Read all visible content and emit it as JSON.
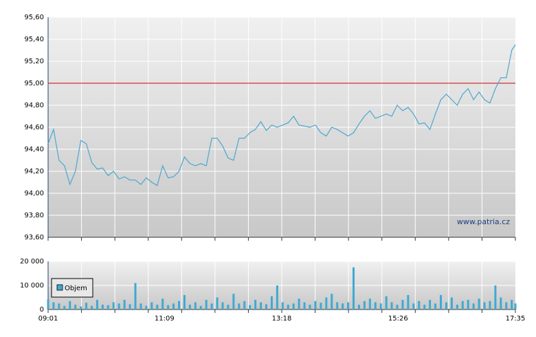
{
  "chart_data": [
    {
      "type": "line",
      "x": [
        "09:01",
        "09:07",
        "09:13",
        "09:19",
        "09:25",
        "09:31",
        "09:37",
        "09:43",
        "09:49",
        "09:55",
        "10:01",
        "10:07",
        "10:13",
        "10:19",
        "10:25",
        "10:31",
        "10:37",
        "10:43",
        "10:49",
        "10:55",
        "11:01",
        "11:07",
        "11:13",
        "11:19",
        "11:25",
        "11:31",
        "11:37",
        "11:43",
        "11:49",
        "11:55",
        "12:01",
        "12:07",
        "12:13",
        "12:19",
        "12:25",
        "12:31",
        "12:37",
        "12:43",
        "12:49",
        "12:55",
        "13:01",
        "13:07",
        "13:13",
        "13:19",
        "13:25",
        "13:31",
        "13:37",
        "13:43",
        "13:49",
        "13:55",
        "14:01",
        "14:07",
        "14:13",
        "14:19",
        "14:25",
        "14:31",
        "14:37",
        "14:43",
        "14:49",
        "14:55",
        "15:01",
        "15:07",
        "15:13",
        "15:19",
        "15:25",
        "15:31",
        "15:37",
        "15:43",
        "15:49",
        "15:55",
        "16:01",
        "16:07",
        "16:13",
        "16:19",
        "16:25",
        "16:31",
        "16:37",
        "16:43",
        "16:49",
        "16:55",
        "17:01",
        "17:07",
        "17:13",
        "17:19",
        "17:25",
        "17:31",
        "17:35"
      ],
      "values": [
        94.45,
        94.58,
        94.3,
        94.25,
        94.08,
        94.2,
        94.48,
        94.45,
        94.28,
        94.22,
        94.23,
        94.16,
        94.2,
        94.13,
        94.15,
        94.12,
        94.12,
        94.08,
        94.14,
        94.1,
        94.07,
        94.25,
        94.14,
        94.15,
        94.2,
        94.33,
        94.27,
        94.25,
        94.27,
        94.25,
        94.5,
        94.5,
        94.43,
        94.32,
        94.3,
        94.5,
        94.5,
        94.55,
        94.58,
        94.65,
        94.57,
        94.62,
        94.6,
        94.62,
        94.64,
        94.7,
        94.62,
        94.61,
        94.6,
        94.62,
        94.55,
        94.52,
        94.6,
        94.58,
        94.55,
        94.52,
        94.55,
        94.63,
        94.7,
        94.75,
        94.68,
        94.7,
        94.72,
        94.7,
        94.8,
        94.75,
        94.78,
        94.72,
        94.63,
        94.64,
        94.58,
        94.72,
        94.85,
        94.9,
        94.85,
        94.8,
        94.9,
        94.95,
        94.85,
        94.92,
        94.85,
        94.82,
        94.95,
        95.05,
        95.05,
        95.3,
        95.35
      ],
      "color": "#4aa6cf",
      "xlim": [
        "09:01",
        "17:35"
      ],
      "ylim": [
        93.6,
        95.6
      ],
      "yticks": [
        {
          "value": 93.6,
          "label": "93,60"
        },
        {
          "value": 93.8,
          "label": "93,80"
        },
        {
          "value": 94.0,
          "label": "94,00"
        },
        {
          "value": 94.2,
          "label": "94,20"
        },
        {
          "value": 94.4,
          "label": "94,40"
        },
        {
          "value": 94.6,
          "label": "94,60"
        },
        {
          "value": 94.8,
          "label": "94,80"
        },
        {
          "value": 95.0,
          "label": "95,00"
        },
        {
          "value": 95.2,
          "label": "95,20"
        },
        {
          "value": 95.4,
          "label": "95,40"
        },
        {
          "value": 95.6,
          "label": "95,60"
        }
      ],
      "reference_line": {
        "value": 95.0,
        "color": "#cc0000"
      },
      "annotation": "www.patria.cz",
      "grid": true
    },
    {
      "type": "bar",
      "x": [
        "09:01",
        "09:07",
        "09:13",
        "09:19",
        "09:25",
        "09:31",
        "09:37",
        "09:43",
        "09:49",
        "09:55",
        "10:01",
        "10:07",
        "10:13",
        "10:19",
        "10:25",
        "10:31",
        "10:37",
        "10:43",
        "10:49",
        "10:55",
        "11:01",
        "11:07",
        "11:13",
        "11:19",
        "11:25",
        "11:31",
        "11:37",
        "11:43",
        "11:49",
        "11:55",
        "12:01",
        "12:07",
        "12:13",
        "12:19",
        "12:25",
        "12:31",
        "12:37",
        "12:43",
        "12:49",
        "12:55",
        "13:01",
        "13:07",
        "13:13",
        "13:19",
        "13:25",
        "13:31",
        "13:37",
        "13:43",
        "13:49",
        "13:55",
        "14:01",
        "14:07",
        "14:13",
        "14:19",
        "14:25",
        "14:31",
        "14:37",
        "14:43",
        "14:49",
        "14:55",
        "15:01",
        "15:07",
        "15:13",
        "15:19",
        "15:25",
        "15:31",
        "15:37",
        "15:43",
        "15:49",
        "15:55",
        "16:01",
        "16:07",
        "16:13",
        "16:19",
        "16:25",
        "16:31",
        "16:37",
        "16:43",
        "16:49",
        "16:55",
        "17:01",
        "17:07",
        "17:13",
        "17:19",
        "17:25",
        "17:31",
        "17:35"
      ],
      "series": [
        {
          "name": "Objem",
          "color": "#3fa9d1",
          "values": [
            4200,
            3000,
            2500,
            1500,
            3500,
            2000,
            1200,
            2800,
            1500,
            4000,
            2000,
            1800,
            3000,
            2500,
            4000,
            2200,
            11000,
            2500,
            1500,
            3000,
            2000,
            4500,
            1800,
            2500,
            3500,
            6000,
            2000,
            3000,
            1500,
            4000,
            2500,
            5000,
            3000,
            2000,
            6500,
            2500,
            3500,
            1800,
            4000,
            3000,
            2200,
            5500,
            10000,
            3000,
            2000,
            2500,
            4500,
            3000,
            2000,
            3500,
            2800,
            5000,
            6500,
            3000,
            2500,
            3000,
            17500,
            2000,
            3500,
            4500,
            3000,
            2500,
            5500,
            3000,
            2000,
            4000,
            6000,
            2500,
            3500,
            2000,
            4000,
            2500,
            6000,
            3000,
            5000,
            2000,
            3500,
            4000,
            2500,
            4500,
            3000,
            3500,
            10000,
            5000,
            3000,
            4000,
            2500
          ]
        }
      ],
      "xlim": [
        "09:01",
        "17:35"
      ],
      "xticks": [
        "09:01",
        "11:09",
        "13:18",
        "15:26",
        "17:35"
      ],
      "ylim": [
        0,
        20000
      ],
      "yticks": [
        0,
        {
          "value": 10000,
          "label": "10 000"
        },
        {
          "value": 20000,
          "label": "20 000"
        }
      ],
      "legend": "upper left",
      "grid": true
    }
  ]
}
